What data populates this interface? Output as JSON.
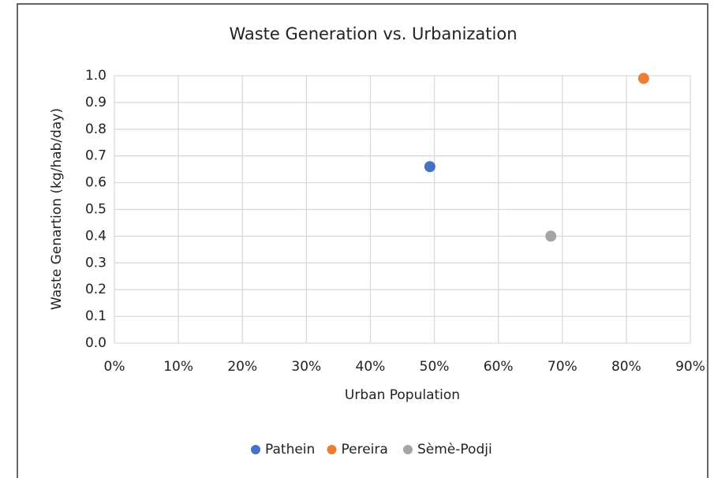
{
  "chart_data": {
    "type": "scatter",
    "title": "Waste Generation vs. Urbanization",
    "xlabel": "Urban Population",
    "ylabel": "Waste Genartion (kg/hab/day)",
    "series": [
      {
        "name": "Pathein",
        "color": "#4472c4",
        "x": [
          49.3
        ],
        "values": [
          0.66
        ]
      },
      {
        "name": "Pereira",
        "color": "#ed7d31",
        "x": [
          82.7
        ],
        "values": [
          0.99
        ]
      },
      {
        "name": "Sèmè-Podji",
        "color": "#a5a5a5",
        "x": [
          68.2
        ],
        "values": [
          0.4
        ]
      }
    ],
    "xlim": [
      0,
      90
    ],
    "xticks": [
      {
        "value": 0,
        "label": "0%"
      },
      {
        "value": 10,
        "label": "10%"
      },
      {
        "value": 20,
        "label": "20%"
      },
      {
        "value": 30,
        "label": "30%"
      },
      {
        "value": 40,
        "label": "40%"
      },
      {
        "value": 50,
        "label": "50%"
      },
      {
        "value": 60,
        "label": "60%"
      },
      {
        "value": 70,
        "label": "70%"
      },
      {
        "value": 80,
        "label": "80%"
      },
      {
        "value": 90,
        "label": "90%"
      }
    ],
    "ylim": [
      0,
      1
    ],
    "yticks": [
      {
        "value": 0,
        "label": "0.0"
      },
      0.1,
      0.2,
      0.3,
      0.4,
      0.5,
      0.6,
      0.7,
      0.8,
      0.9,
      {
        "value": 1,
        "label": "1.0"
      }
    ],
    "grid": true,
    "legend": "bottom"
  }
}
